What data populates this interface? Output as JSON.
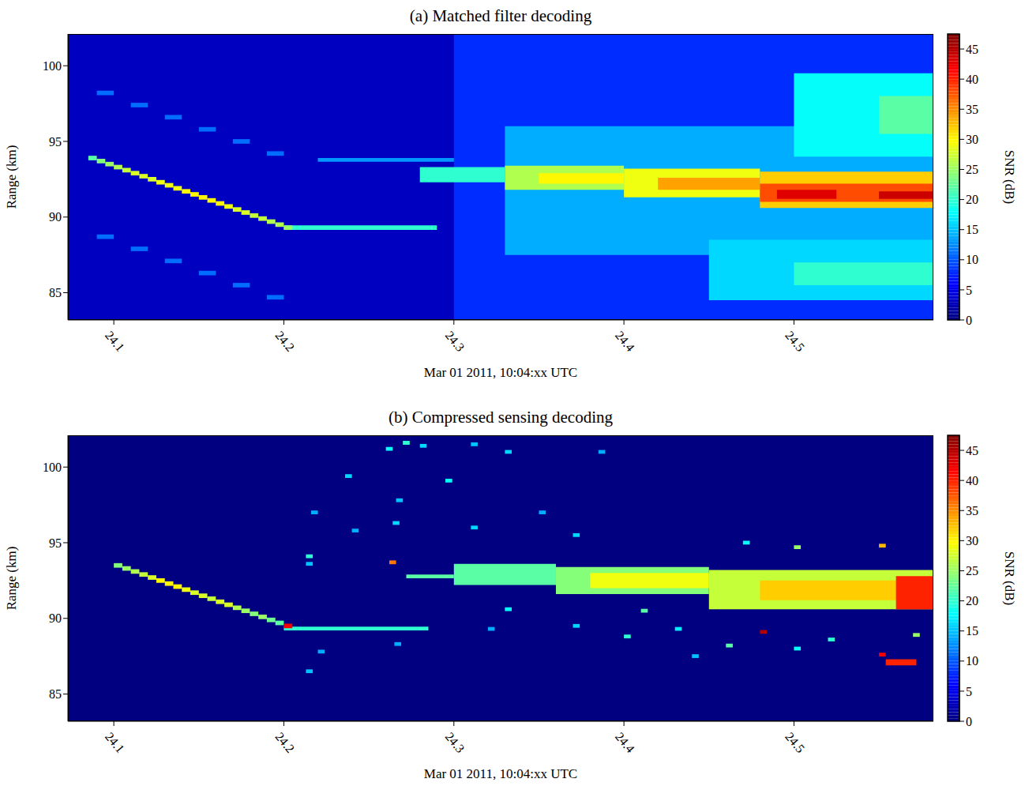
{
  "chart_data": [
    {
      "type": "heatmap",
      "title": "(a) Matched filter decoding",
      "x_label": "Mar 01 2011, 10:04:xx UTC",
      "y_label": "Range (km)",
      "xlim": [
        24.073,
        24.582
      ],
      "ylim": [
        83.2,
        102.1
      ],
      "xticks": [
        24.1,
        24.2,
        24.3,
        24.4,
        24.5
      ],
      "yticks": [
        85,
        90,
        95,
        100
      ],
      "colorbar": {
        "label": "SNR (dB)",
        "range": [
          0,
          47.5
        ],
        "ticks": [
          0,
          5,
          10,
          15,
          20,
          25,
          30,
          35,
          40,
          45
        ]
      },
      "background_snr": 3,
      "cells": [
        {
          "t0": 24.3,
          "t1": 24.582,
          "r0": 83.2,
          "r1": 102.1,
          "snr": 8
        },
        {
          "t0": 24.33,
          "t1": 24.582,
          "r0": 87.5,
          "r1": 96.0,
          "snr": 14
        },
        {
          "t0": 24.45,
          "t1": 24.582,
          "r0": 84.5,
          "r1": 88.5,
          "snr": 16
        },
        {
          "t0": 24.5,
          "t1": 24.582,
          "r0": 94.0,
          "r1": 99.5,
          "snr": 18
        },
        {
          "t0": 24.5,
          "t1": 24.582,
          "r0": 85.5,
          "r1": 87.0,
          "snr": 20
        },
        {
          "t0": 24.55,
          "t1": 24.582,
          "r0": 95.5,
          "r1": 98.0,
          "snr": 22
        },
        {
          "t0": 24.28,
          "t1": 24.33,
          "r0": 92.3,
          "r1": 93.3,
          "snr": 20
        },
        {
          "t0": 24.33,
          "t1": 24.4,
          "r0": 91.8,
          "r1": 93.4,
          "snr": 26
        },
        {
          "t0": 24.35,
          "t1": 24.4,
          "r0": 92.2,
          "r1": 92.9,
          "snr": 30
        },
        {
          "t0": 24.4,
          "t1": 24.48,
          "r0": 91.3,
          "r1": 93.2,
          "snr": 29
        },
        {
          "t0": 24.42,
          "t1": 24.48,
          "r0": 91.8,
          "r1": 92.6,
          "snr": 34
        },
        {
          "t0": 24.48,
          "t1": 24.582,
          "r0": 90.6,
          "r1": 93.0,
          "snr": 32
        },
        {
          "t0": 24.48,
          "t1": 24.582,
          "r0": 91.0,
          "r1": 92.2,
          "snr": 38
        },
        {
          "t0": 24.49,
          "t1": 24.525,
          "r0": 91.2,
          "r1": 91.8,
          "snr": 43
        },
        {
          "t0": 24.55,
          "t1": 24.582,
          "r0": 91.2,
          "r1": 91.7,
          "snr": 44
        },
        {
          "t0": 24.2,
          "t1": 24.29,
          "r0": 89.15,
          "r1": 89.45,
          "snr": 20
        },
        {
          "t0": 24.22,
          "t1": 24.3,
          "r0": 93.65,
          "r1": 93.9,
          "snr": 13
        },
        {
          "t0": 24.09,
          "t1": 24.1,
          "r0": 98.05,
          "r1": 98.35,
          "snr": 11
        },
        {
          "t0": 24.11,
          "t1": 24.12,
          "r0": 97.25,
          "r1": 97.55,
          "snr": 11
        },
        {
          "t0": 24.13,
          "t1": 24.14,
          "r0": 96.45,
          "r1": 96.75,
          "snr": 11
        },
        {
          "t0": 24.15,
          "t1": 24.16,
          "r0": 95.65,
          "r1": 95.95,
          "snr": 11
        },
        {
          "t0": 24.17,
          "t1": 24.18,
          "r0": 94.85,
          "r1": 95.15,
          "snr": 11
        },
        {
          "t0": 24.19,
          "t1": 24.2,
          "r0": 94.05,
          "r1": 94.35,
          "snr": 11
        },
        {
          "t0": 24.09,
          "t1": 24.1,
          "r0": 88.55,
          "r1": 88.85,
          "snr": 11
        },
        {
          "t0": 24.11,
          "t1": 24.12,
          "r0": 87.75,
          "r1": 88.05,
          "snr": 11
        },
        {
          "t0": 24.13,
          "t1": 24.14,
          "r0": 86.95,
          "r1": 87.25,
          "snr": 11
        },
        {
          "t0": 24.15,
          "t1": 24.16,
          "r0": 86.15,
          "r1": 86.45,
          "snr": 11
        },
        {
          "t0": 24.17,
          "t1": 24.18,
          "r0": 85.35,
          "r1": 85.65,
          "snr": 11
        },
        {
          "t0": 24.19,
          "t1": 24.2,
          "r0": 84.55,
          "r1": 84.85,
          "snr": 11
        },
        {
          "t0": 24.085,
          "t1": 24.09,
          "r0": 93.75,
          "r1": 94.05,
          "snr": 22
        },
        {
          "t0": 24.09,
          "t1": 24.095,
          "r0": 93.55,
          "r1": 93.85,
          "snr": 24
        },
        {
          "t0": 24.095,
          "t1": 24.1,
          "r0": 93.35,
          "r1": 93.65,
          "snr": 25
        },
        {
          "t0": 24.1,
          "t1": 24.105,
          "r0": 93.15,
          "r1": 93.45,
          "snr": 26
        },
        {
          "t0": 24.105,
          "t1": 24.11,
          "r0": 92.95,
          "r1": 93.25,
          "snr": 27
        },
        {
          "t0": 24.11,
          "t1": 24.115,
          "r0": 92.75,
          "r1": 93.05,
          "snr": 28
        },
        {
          "t0": 24.115,
          "t1": 24.12,
          "r0": 92.55,
          "r1": 92.85,
          "snr": 28
        },
        {
          "t0": 24.12,
          "t1": 24.125,
          "r0": 92.35,
          "r1": 92.65,
          "snr": 28
        },
        {
          "t0": 24.125,
          "t1": 24.13,
          "r0": 92.15,
          "r1": 92.45,
          "snr": 29
        },
        {
          "t0": 24.13,
          "t1": 24.135,
          "r0": 91.95,
          "r1": 92.25,
          "snr": 29
        },
        {
          "t0": 24.135,
          "t1": 24.14,
          "r0": 91.75,
          "r1": 92.05,
          "snr": 29
        },
        {
          "t0": 24.14,
          "t1": 24.145,
          "r0": 91.55,
          "r1": 91.85,
          "snr": 30
        },
        {
          "t0": 24.145,
          "t1": 24.15,
          "r0": 91.35,
          "r1": 91.65,
          "snr": 30
        },
        {
          "t0": 24.15,
          "t1": 24.155,
          "r0": 91.15,
          "r1": 91.45,
          "snr": 30
        },
        {
          "t0": 24.155,
          "t1": 24.16,
          "r0": 90.95,
          "r1": 91.25,
          "snr": 30
        },
        {
          "t0": 24.16,
          "t1": 24.165,
          "r0": 90.75,
          "r1": 91.05,
          "snr": 30
        },
        {
          "t0": 24.165,
          "t1": 24.17,
          "r0": 90.55,
          "r1": 90.85,
          "snr": 29
        },
        {
          "t0": 24.17,
          "t1": 24.175,
          "r0": 90.35,
          "r1": 90.65,
          "snr": 28
        },
        {
          "t0": 24.175,
          "t1": 24.18,
          "r0": 90.15,
          "r1": 90.45,
          "snr": 28
        },
        {
          "t0": 24.18,
          "t1": 24.185,
          "r0": 89.95,
          "r1": 90.25,
          "snr": 27
        },
        {
          "t0": 24.185,
          "t1": 24.19,
          "r0": 89.75,
          "r1": 90.05,
          "snr": 27
        },
        {
          "t0": 24.19,
          "t1": 24.195,
          "r0": 89.55,
          "r1": 89.85,
          "snr": 26
        },
        {
          "t0": 24.195,
          "t1": 24.2,
          "r0": 89.35,
          "r1": 89.65,
          "snr": 26
        },
        {
          "t0": 24.2,
          "t1": 24.205,
          "r0": 89.15,
          "r1": 89.45,
          "snr": 25
        }
      ]
    },
    {
      "type": "heatmap",
      "title": "(b) Compressed sensing decoding",
      "x_label": "Mar 01 2011, 10:04:xx UTC",
      "y_label": "Range (km)",
      "xlim": [
        24.073,
        24.582
      ],
      "ylim": [
        83.2,
        102.1
      ],
      "xticks": [
        24.1,
        24.2,
        24.3,
        24.4,
        24.5
      ],
      "yticks": [
        85,
        90,
        95,
        100
      ],
      "colorbar": {
        "label": "SNR (dB)",
        "range": [
          0,
          47.5
        ],
        "ticks": [
          0,
          5,
          10,
          15,
          20,
          25,
          30,
          35,
          40,
          45
        ]
      },
      "background_snr": 0,
      "cells": [
        {
          "t0": 24.3,
          "t1": 24.36,
          "r0": 92.2,
          "r1": 93.6,
          "snr": 22
        },
        {
          "t0": 24.36,
          "t1": 24.45,
          "r0": 91.6,
          "r1": 93.4,
          "snr": 24
        },
        {
          "t0": 24.38,
          "t1": 24.45,
          "r0": 92.0,
          "r1": 93.0,
          "snr": 29
        },
        {
          "t0": 24.45,
          "t1": 24.582,
          "r0": 90.6,
          "r1": 93.2,
          "snr": 27
        },
        {
          "t0": 24.48,
          "t1": 24.582,
          "r0": 91.2,
          "r1": 92.5,
          "snr": 32
        },
        {
          "t0": 24.56,
          "t1": 24.582,
          "r0": 90.6,
          "r1": 92.8,
          "snr": 40
        },
        {
          "t0": 24.554,
          "t1": 24.572,
          "r0": 86.9,
          "r1": 87.3,
          "snr": 40
        },
        {
          "t0": 24.2,
          "t1": 24.285,
          "r0": 89.2,
          "r1": 89.45,
          "snr": 20
        },
        {
          "t0": 24.272,
          "t1": 24.3,
          "r0": 92.65,
          "r1": 92.9,
          "snr": 22
        },
        {
          "t0": 24.213,
          "t1": 24.217,
          "r0": 93.98,
          "r1": 94.23,
          "snr": 20
        },
        {
          "t0": 24.213,
          "t1": 24.217,
          "r0": 93.48,
          "r1": 93.73,
          "snr": 15
        },
        {
          "t0": 24.216,
          "t1": 24.22,
          "r0": 96.88,
          "r1": 97.13,
          "snr": 14
        },
        {
          "t0": 24.236,
          "t1": 24.24,
          "r0": 99.28,
          "r1": 99.53,
          "snr": 16
        },
        {
          "t0": 24.24,
          "t1": 24.244,
          "r0": 95.68,
          "r1": 95.93,
          "snr": 14
        },
        {
          "t0": 24.26,
          "t1": 24.264,
          "r0": 101.08,
          "r1": 101.33,
          "snr": 18
        },
        {
          "t0": 24.262,
          "t1": 24.266,
          "r0": 93.58,
          "r1": 93.83,
          "snr": 36
        },
        {
          "t0": 24.264,
          "t1": 24.268,
          "r0": 96.18,
          "r1": 96.43,
          "snr": 16
        },
        {
          "t0": 24.266,
          "t1": 24.27,
          "r0": 97.68,
          "r1": 97.93,
          "snr": 15
        },
        {
          "t0": 24.27,
          "t1": 24.274,
          "r0": 101.48,
          "r1": 101.73,
          "snr": 20
        },
        {
          "t0": 24.28,
          "t1": 24.284,
          "r0": 101.28,
          "r1": 101.53,
          "snr": 16
        },
        {
          "t0": 24.295,
          "t1": 24.299,
          "r0": 98.98,
          "r1": 99.23,
          "snr": 18
        },
        {
          "t0": 24.31,
          "t1": 24.314,
          "r0": 101.38,
          "r1": 101.63,
          "snr": 15
        },
        {
          "t0": 24.33,
          "t1": 24.334,
          "r0": 100.88,
          "r1": 101.13,
          "snr": 16
        },
        {
          "t0": 24.385,
          "t1": 24.389,
          "r0": 100.88,
          "r1": 101.13,
          "snr": 14
        },
        {
          "t0": 24.31,
          "t1": 24.314,
          "r0": 95.88,
          "r1": 96.13,
          "snr": 16
        },
        {
          "t0": 24.35,
          "t1": 24.354,
          "r0": 96.88,
          "r1": 97.13,
          "snr": 14
        },
        {
          "t0": 24.37,
          "t1": 24.374,
          "r0": 95.38,
          "r1": 95.63,
          "snr": 16
        },
        {
          "t0": 24.22,
          "t1": 24.224,
          "r0": 87.68,
          "r1": 87.93,
          "snr": 14
        },
        {
          "t0": 24.213,
          "t1": 24.217,
          "r0": 86.38,
          "r1": 86.63,
          "snr": 15
        },
        {
          "t0": 24.265,
          "t1": 24.269,
          "r0": 88.18,
          "r1": 88.43,
          "snr": 14
        },
        {
          "t0": 24.32,
          "t1": 24.324,
          "r0": 89.18,
          "r1": 89.43,
          "snr": 14
        },
        {
          "t0": 24.33,
          "t1": 24.334,
          "r0": 90.48,
          "r1": 90.73,
          "snr": 18
        },
        {
          "t0": 24.37,
          "t1": 24.374,
          "r0": 89.38,
          "r1": 89.63,
          "snr": 16
        },
        {
          "t0": 24.4,
          "t1": 24.404,
          "r0": 88.68,
          "r1": 88.93,
          "snr": 20
        },
        {
          "t0": 24.43,
          "t1": 24.434,
          "r0": 89.18,
          "r1": 89.43,
          "snr": 17
        },
        {
          "t0": 24.46,
          "t1": 24.464,
          "r0": 88.08,
          "r1": 88.33,
          "snr": 22
        },
        {
          "t0": 24.48,
          "t1": 24.484,
          "r0": 88.98,
          "r1": 89.23,
          "snr": 45
        },
        {
          "t0": 24.5,
          "t1": 24.504,
          "r0": 87.88,
          "r1": 88.13,
          "snr": 18
        },
        {
          "t0": 24.52,
          "t1": 24.524,
          "r0": 88.48,
          "r1": 88.73,
          "snr": 20
        },
        {
          "t0": 24.55,
          "t1": 24.554,
          "r0": 87.48,
          "r1": 87.73,
          "snr": 42
        },
        {
          "t0": 24.57,
          "t1": 24.574,
          "r0": 88.78,
          "r1": 89.03,
          "snr": 25
        },
        {
          "t0": 24.44,
          "t1": 24.444,
          "r0": 87.38,
          "r1": 87.63,
          "snr": 15
        },
        {
          "t0": 24.41,
          "t1": 24.414,
          "r0": 90.38,
          "r1": 90.63,
          "snr": 22
        },
        {
          "t0": 24.5,
          "t1": 24.504,
          "r0": 94.58,
          "r1": 94.83,
          "snr": 25
        },
        {
          "t0": 24.55,
          "t1": 24.554,
          "r0": 94.68,
          "r1": 94.93,
          "snr": 33
        },
        {
          "t0": 24.47,
          "t1": 24.474,
          "r0": 94.88,
          "r1": 95.13,
          "snr": 18
        },
        {
          "t0": 24.1,
          "t1": 24.105,
          "r0": 93.35,
          "r1": 93.65,
          "snr": 24
        },
        {
          "t0": 24.105,
          "t1": 24.11,
          "r0": 93.15,
          "r1": 93.45,
          "snr": 25
        },
        {
          "t0": 24.11,
          "t1": 24.115,
          "r0": 92.95,
          "r1": 93.25,
          "snr": 26
        },
        {
          "t0": 24.115,
          "t1": 24.12,
          "r0": 92.75,
          "r1": 93.05,
          "snr": 27
        },
        {
          "t0": 24.12,
          "t1": 24.125,
          "r0": 92.55,
          "r1": 92.85,
          "snr": 28
        },
        {
          "t0": 24.125,
          "t1": 24.13,
          "r0": 92.35,
          "r1": 92.65,
          "snr": 30
        },
        {
          "t0": 24.13,
          "t1": 24.135,
          "r0": 92.15,
          "r1": 92.45,
          "snr": 30
        },
        {
          "t0": 24.135,
          "t1": 24.14,
          "r0": 91.95,
          "r1": 92.25,
          "snr": 30
        },
        {
          "t0": 24.14,
          "t1": 24.145,
          "r0": 91.75,
          "r1": 92.05,
          "snr": 29
        },
        {
          "t0": 24.145,
          "t1": 24.15,
          "r0": 91.55,
          "r1": 91.85,
          "snr": 28
        },
        {
          "t0": 24.15,
          "t1": 24.155,
          "r0": 91.35,
          "r1": 91.65,
          "snr": 28
        },
        {
          "t0": 24.155,
          "t1": 24.16,
          "r0": 91.15,
          "r1": 91.45,
          "snr": 27
        },
        {
          "t0": 24.16,
          "t1": 24.165,
          "r0": 90.95,
          "r1": 91.25,
          "snr": 28
        },
        {
          "t0": 24.165,
          "t1": 24.17,
          "r0": 90.75,
          "r1": 91.05,
          "snr": 28
        },
        {
          "t0": 24.17,
          "t1": 24.175,
          "r0": 90.55,
          "r1": 90.85,
          "snr": 26
        },
        {
          "t0": 24.175,
          "t1": 24.18,
          "r0": 90.35,
          "r1": 90.65,
          "snr": 25
        },
        {
          "t0": 24.18,
          "t1": 24.185,
          "r0": 90.15,
          "r1": 90.45,
          "snr": 24
        },
        {
          "t0": 24.185,
          "t1": 24.19,
          "r0": 89.95,
          "r1": 90.25,
          "snr": 25
        },
        {
          "t0": 24.19,
          "t1": 24.195,
          "r0": 89.75,
          "r1": 90.05,
          "snr": 23
        },
        {
          "t0": 24.195,
          "t1": 24.2,
          "r0": 89.55,
          "r1": 89.85,
          "snr": 22
        },
        {
          "t0": 24.2,
          "t1": 24.205,
          "r0": 89.35,
          "r1": 89.65,
          "snr": 42
        }
      ]
    }
  ]
}
